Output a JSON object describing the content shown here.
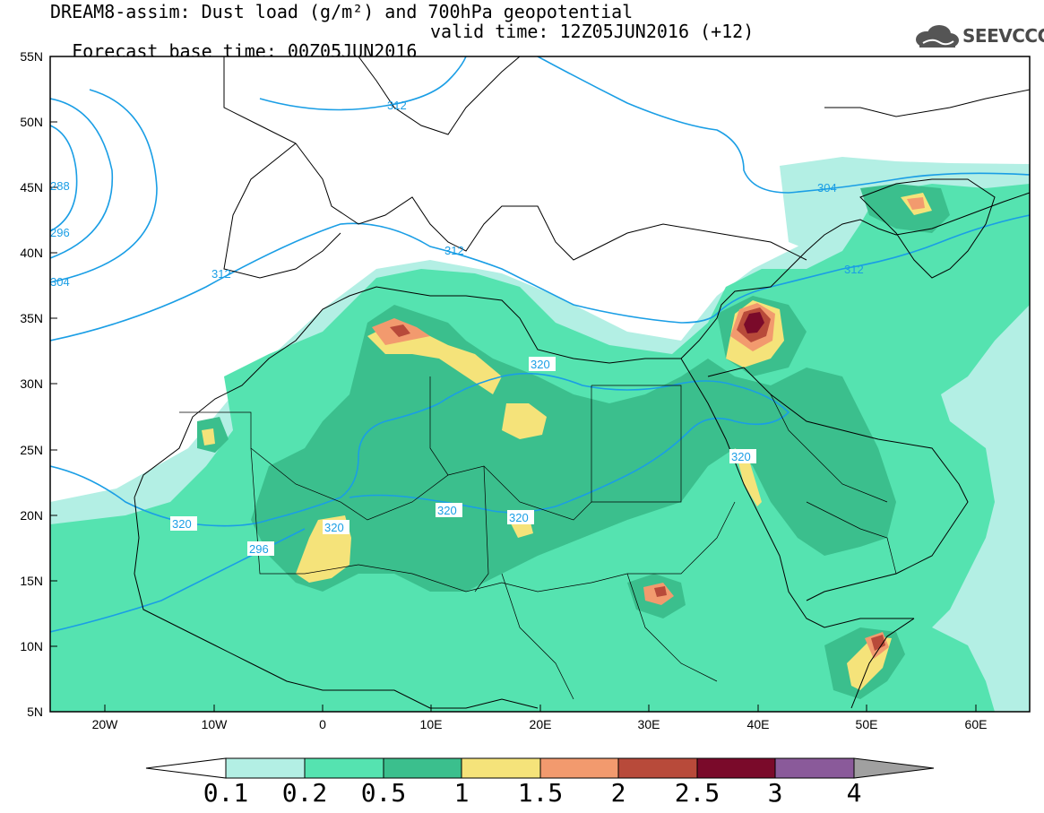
{
  "header": {
    "line1": "DREAM8-assim: Dust load (g/m²) and 700hPa geopotential",
    "base_time": "Forecast base time: 00Z05JUN2016",
    "valid_time": "valid time: 12Z05JUN2016 (+12)",
    "logo_text": "SEEVCCC",
    "logo_icon": "cloud-icon"
  },
  "map": {
    "lon_range": [
      -25,
      65
    ],
    "lat_range": [
      5,
      55
    ],
    "lat_labels": [
      "55N",
      "50N",
      "45N",
      "40N",
      "35N",
      "30N",
      "25N",
      "20N",
      "15N",
      "10N",
      "5N"
    ],
    "lon_labels": [
      "20W",
      "10W",
      "0",
      "10E",
      "20E",
      "30E",
      "40E",
      "50E",
      "60E"
    ],
    "contour_labels": [
      "288",
      "296",
      "304",
      "304",
      "312",
      "312",
      "312",
      "312",
      "320",
      "320",
      "320",
      "320",
      "320",
      "320",
      "296"
    ]
  },
  "colorbar": {
    "levels": [
      "0.1",
      "0.2",
      "0.5",
      "1",
      "1.5",
      "2",
      "2.5",
      "3",
      "4"
    ],
    "colors": [
      "#ffffff",
      "#b3efe4",
      "#55e3b0",
      "#3bbf8d",
      "#f5e37a",
      "#f29a6e",
      "#b84a3a",
      "#7a0a2a",
      "#8a5a9a",
      "#a0a0a0"
    ]
  }
}
